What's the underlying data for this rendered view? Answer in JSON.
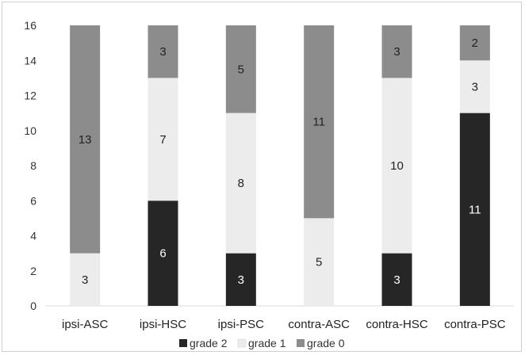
{
  "chart_data": {
    "type": "bar",
    "stacked": true,
    "categories": [
      "ipsi-ASC",
      "ipsi-HSC",
      "ipsi-PSC",
      "contra-ASC",
      "contra-HSC",
      "contra-PSC"
    ],
    "series": [
      {
        "name": "grade 2",
        "color": "#262626",
        "label_color": "#ffffff",
        "values": [
          0,
          6,
          3,
          0,
          3,
          11
        ]
      },
      {
        "name": "grade 1",
        "color": "#ececec",
        "label_color": "#222222",
        "values": [
          3,
          7,
          8,
          5,
          10,
          3
        ]
      },
      {
        "name": "grade 0",
        "color": "#8c8c8c",
        "label_color": "#222222",
        "values": [
          13,
          3,
          5,
          11,
          3,
          2
        ]
      }
    ],
    "ylim": [
      0,
      16
    ],
    "yticks": [
      0,
      2,
      4,
      6,
      8,
      10,
      12,
      14,
      16
    ],
    "grid": false,
    "legend_position": "bottom",
    "title": "",
    "xlabel": "",
    "ylabel": ""
  }
}
